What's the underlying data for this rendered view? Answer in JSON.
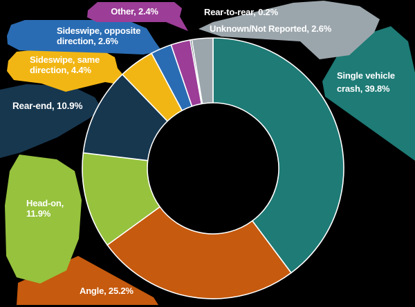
{
  "background_color": "#000000",
  "text_color": "#ffffff",
  "chart_data": {
    "type": "pie",
    "variant": "donut",
    "title": "",
    "unit": "%",
    "direction": "clockwise",
    "start_angle_deg": 0,
    "inner_radius_ratio": 0.503,
    "slice_border_color": "#ffffff",
    "legend_position": "callout-labels",
    "categories": [
      "Single vehicle crash",
      "Angle",
      "Head-on",
      "Rear-end",
      "Sideswipe, same direction",
      "Sideswipe, opposite direction",
      "Other",
      "Rear-to-rear",
      "Unknown/Not Reported"
    ],
    "values": [
      39.8,
      25.2,
      11.9,
      10.9,
      4.4,
      2.6,
      2.4,
      0.2,
      2.6
    ],
    "colors": [
      "#1e7b76",
      "#c65a0e",
      "#96c23d",
      "#17374f",
      "#f2b614",
      "#2a6cb3",
      "#9c3d98",
      "#1b2f38",
      "#9ba6ac"
    ],
    "labels": [
      {
        "text": "Single vehicle crash, 39.8%",
        "lines": [
          "Single vehicle",
          "crash, 39.8%"
        ]
      },
      {
        "text": "Angle, 25.2%",
        "lines": [
          "Angle, 25.2%"
        ]
      },
      {
        "text": "Head-on, 11.9%",
        "lines": [
          "Head-on,",
          "11.9%"
        ]
      },
      {
        "text": "Rear-end, 10.9%",
        "lines": [
          "Rear-end, 10.9%"
        ]
      },
      {
        "text": "Sideswipe, same direction, 4.4%",
        "lines": [
          "Sideswipe, same",
          "direction, 4.4%"
        ]
      },
      {
        "text": "Sideswipe, opposite direction, 2.6%",
        "lines": [
          "Sideswipe, opposite",
          "direction, 2.6%"
        ]
      },
      {
        "text": "Other, 2.4%",
        "lines": [
          "Other, 2.4%"
        ]
      },
      {
        "text": "Rear-to-rear, 0.2%",
        "lines": [
          "Rear-to-rear, 0.2%"
        ]
      },
      {
        "text": "Unknown/Not Reported, 2.6%",
        "lines": [
          "Unknown/Not Reported, 2.6%"
        ]
      }
    ]
  }
}
